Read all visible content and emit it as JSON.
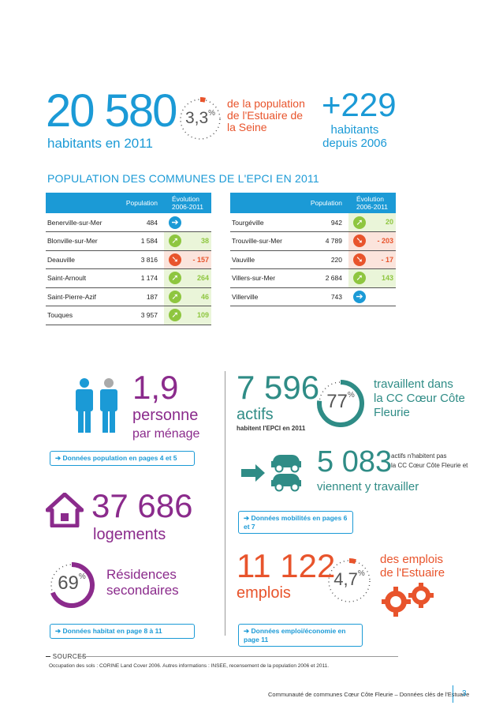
{
  "top": {
    "population_number": "20 580",
    "population_label": "habitants en 2011",
    "share_value": "3,3",
    "share_unit": "%",
    "share_fraction": 0.033,
    "share_text": "de la population de l'Estuaire de la Seine",
    "growth_number": "+229",
    "growth_label": "habitants depuis 2006"
  },
  "table": {
    "title": "POPULATION DES COMMUNES DE L'EPCI EN 2011",
    "col_population": "Population",
    "col_evolution": "Évolution 2006-2011",
    "left_rows": [
      {
        "name": "Benerville-sur-Mer",
        "population": "484",
        "evolution": "",
        "trend": "stable"
      },
      {
        "name": "Blonville-sur-Mer",
        "population": "1 584",
        "evolution": "38",
        "trend": "up"
      },
      {
        "name": "Deauville",
        "population": "3 816",
        "evolution": "- 157",
        "trend": "down"
      },
      {
        "name": "Saint-Arnoult",
        "population": "1 174",
        "evolution": "264",
        "trend": "up"
      },
      {
        "name": "Saint-Pierre-Azif",
        "population": "187",
        "evolution": "46",
        "trend": "up"
      },
      {
        "name": "Touques",
        "population": "3 957",
        "evolution": "109",
        "trend": "up"
      }
    ],
    "right_rows": [
      {
        "name": "Tourgéville",
        "population": "942",
        "evolution": "20",
        "trend": "up"
      },
      {
        "name": "Trouville-sur-Mer",
        "population": "4 789",
        "evolution": "- 203",
        "trend": "down"
      },
      {
        "name": "Vauville",
        "population": "220",
        "evolution": "- 17",
        "trend": "down"
      },
      {
        "name": "Villers-sur-Mer",
        "population": "2 684",
        "evolution": "143",
        "trend": "up"
      },
      {
        "name": "Villerville",
        "population": "743",
        "evolution": "",
        "trend": "stable"
      }
    ]
  },
  "household": {
    "number": "1,9",
    "label1": "personne",
    "label2": "par ménage",
    "link": "Données population en pages 4 et 5"
  },
  "housing": {
    "number": "37 686",
    "label": "logements",
    "secondary_value": "69",
    "secondary_unit": "%",
    "secondary_fraction": 0.69,
    "secondary_label1": "Résidences",
    "secondary_label2": "secondaires",
    "link": "Données habitat en page 8 à 11"
  },
  "workers": {
    "number": "7 596",
    "label": "actifs",
    "sublabel": "habitent l'EPCI en 2011",
    "share_value": "77",
    "share_unit": "%",
    "share_fraction": 0.77,
    "share_text1": "travaillent dans",
    "share_text2": "la CC Cœur Côte",
    "share_text3": "Fleurie",
    "commuters_number": "5 083",
    "commuters_text1": "actifs n'habitent pas",
    "commuters_text2": "la CC Cœur Côte Fleurie et",
    "commuters_text3": "viennent y travailler",
    "link": "Données mobilités en pages 6 et 7"
  },
  "jobs": {
    "number": "11 122",
    "label": "emplois",
    "share_value": "4,7",
    "share_unit": "%",
    "share_fraction": 0.047,
    "share_text1": "des emplois",
    "share_text2": "de l'Estuaire",
    "link": "Données emploi/économie en page 11"
  },
  "sources": {
    "title": "SOURCES",
    "text": "Occupation des sols : CORINE Land Cover 2006.  Autres informations : INSEE, recensement de la population 2006 et 2011."
  },
  "footer": {
    "text": "Communauté de communes Cœur Côte Fleurie – Données clés de l'Estuaire",
    "page": "3"
  },
  "colors": {
    "blue": "#1b9ad6",
    "orange": "#e8542c",
    "teal": "#2f8c86",
    "purple": "#8b2b8c",
    "green": "#8ec63f"
  }
}
